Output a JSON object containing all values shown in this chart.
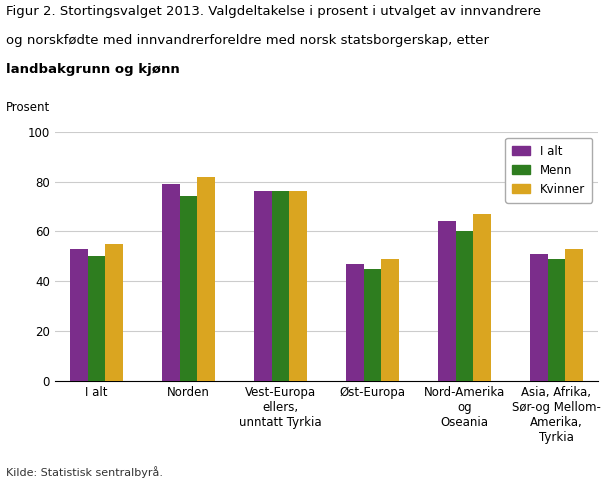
{
  "title_line1": "Figur 2. Stortingsvalget 2013. Valgdeltakelse i prosent i utvalget av innvandrere",
  "title_line2": "og norskfødte med innvandrerforeldre med norsk statsborgerskap, etter",
  "title_line3": "landbakgrunn og kjønn",
  "ylabel": "Prosent",
  "source": "Kilde: Statistisk sentralbyrå.",
  "categories": [
    "I alt",
    "Norden",
    "Vest-Europa\nellers,\nunntatt Tyrkia",
    "Øst-Europa",
    "Nord-Amerika\nog\nOseania",
    "Asia, Afrika,\nSør-og Mellom-\nAmerika,\nTyrkia"
  ],
  "series": {
    "I alt": [
      53,
      79,
      76,
      47,
      64,
      51
    ],
    "Menn": [
      50,
      74,
      76,
      45,
      60,
      49
    ],
    "Kvinner": [
      55,
      82,
      76,
      49,
      67,
      53
    ]
  },
  "colors": {
    "I alt": "#7B2D8B",
    "Menn": "#2E7D1F",
    "Kvinner": "#DAA520"
  },
  "ylim": [
    0,
    100
  ],
  "yticks": [
    0,
    20,
    40,
    60,
    80,
    100
  ],
  "legend_labels": [
    "I alt",
    "Menn",
    "Kvinner"
  ],
  "title_fontsize": 9.5,
  "axis_label_fontsize": 8.5,
  "tick_fontsize": 8.5,
  "legend_fontsize": 8.5,
  "source_fontsize": 8,
  "bar_width": 0.19,
  "background_color": "#ffffff",
  "grid_color": "#cccccc"
}
